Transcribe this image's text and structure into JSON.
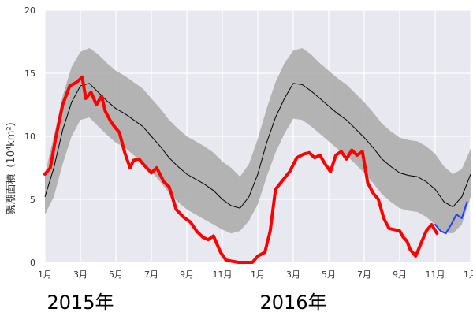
{
  "chart_data": {
    "type": "line",
    "ylabel": "親潮面積（10⁴km²）",
    "ylim": [
      0,
      20
    ],
    "yticks": [
      "0",
      "5",
      "10",
      "15",
      "20"
    ],
    "xlim": [
      0,
      24
    ],
    "xticks": [
      {
        "x": 0,
        "label": "1月"
      },
      {
        "x": 2,
        "label": "3月"
      },
      {
        "x": 4,
        "label": "5月"
      },
      {
        "x": 6,
        "label": "7月"
      },
      {
        "x": 8,
        "label": "9月"
      },
      {
        "x": 10,
        "label": "11月"
      },
      {
        "x": 12,
        "label": "1月"
      },
      {
        "x": 14,
        "label": "3月"
      },
      {
        "x": 16,
        "label": "5月"
      },
      {
        "x": 18,
        "label": "7月"
      },
      {
        "x": 20,
        "label": "9月"
      },
      {
        "x": 22,
        "label": "11月"
      },
      {
        "x": 24,
        "label": "1月"
      }
    ],
    "year_labels": [
      {
        "x": 2,
        "label": "2015年"
      },
      {
        "x": 14,
        "label": "2016年"
      }
    ],
    "grid": true,
    "colors": {
      "background": "#e8e8f0",
      "band": "#a9a9a9",
      "climatology": "#000000",
      "observed": "#ff0000",
      "latest": "#1f3fff"
    },
    "climatology": {
      "x": [
        0,
        0.5,
        1,
        1.5,
        2,
        2.5,
        3,
        3.5,
        4,
        4.5,
        5,
        5.5,
        6,
        6.5,
        7,
        7.5,
        8,
        8.5,
        9,
        9.5,
        10,
        10.5,
        11,
        11.5,
        12,
        12.5,
        13,
        13.5,
        14,
        14.5,
        15,
        15.5,
        16,
        16.5,
        17,
        17.5,
        18,
        18.5,
        19,
        19.5,
        20,
        20.5,
        21,
        21.5,
        22,
        22.5,
        23,
        23.5,
        24
      ],
      "mean": [
        5.2,
        7.5,
        10.5,
        12.7,
        14.0,
        14.2,
        13.5,
        12.8,
        12.2,
        11.8,
        11.3,
        10.8,
        10.0,
        9.2,
        8.3,
        7.6,
        7.0,
        6.6,
        6.2,
        5.7,
        5.0,
        4.5,
        4.3,
        5.2,
        7.0,
        9.5,
        11.5,
        13.0,
        14.2,
        14.1,
        13.6,
        13.0,
        12.4,
        11.8,
        11.3,
        10.6,
        9.9,
        9.1,
        8.2,
        7.6,
        7.1,
        6.9,
        6.8,
        6.4,
        5.8,
        4.8,
        4.4,
        5.2,
        7.0
      ],
      "upper": [
        7.0,
        10.0,
        13.2,
        15.5,
        16.7,
        17.0,
        16.5,
        15.8,
        15.2,
        14.8,
        14.3,
        13.8,
        13.0,
        12.2,
        11.3,
        10.6,
        10.0,
        9.6,
        9.2,
        8.7,
        8.0,
        7.5,
        6.8,
        7.8,
        9.8,
        12.2,
        14.3,
        15.8,
        16.8,
        17.0,
        16.5,
        15.8,
        15.2,
        14.6,
        14.1,
        13.4,
        12.7,
        11.9,
        11.0,
        10.4,
        9.9,
        9.7,
        9.6,
        9.2,
        8.6,
        7.6,
        7.0,
        7.4,
        9.0
      ],
      "lower": [
        3.8,
        5.2,
        7.8,
        10.0,
        11.3,
        11.5,
        10.8,
        10.1,
        9.5,
        9.1,
        8.5,
        8.0,
        7.2,
        6.4,
        5.5,
        4.8,
        4.2,
        3.8,
        3.4,
        3.0,
        2.6,
        2.3,
        2.5,
        3.3,
        4.6,
        6.8,
        8.7,
        10.2,
        11.4,
        11.3,
        10.8,
        10.2,
        9.6,
        9.0,
        8.5,
        7.8,
        7.1,
        6.3,
        5.4,
        4.8,
        4.3,
        4.1,
        4.0,
        3.6,
        3.0,
        2.4,
        2.3,
        3.0,
        5.2
      ]
    },
    "series": [
      {
        "x": [
          0,
          0.3,
          0.6,
          1.0,
          1.4,
          1.8,
          2.1,
          2.3,
          2.6,
          2.9,
          3.2,
          3.4,
          3.7,
          3.9,
          4.2,
          4.5,
          4.8,
          5.0,
          5.3,
          5.6,
          6.0,
          6.3,
          6.7,
          7.0,
          7.4,
          7.8,
          8.2,
          8.6,
          8.9,
          9.2,
          9.5,
          9.9,
          10.2,
          10.5,
          10.9,
          11.3,
          11.7,
          12.0,
          12.4,
          12.7,
          13.0,
          13.4,
          13.8,
          14.2,
          14.6,
          14.9,
          15.2,
          15.5,
          15.8,
          16.1,
          16.4,
          16.7,
          17.0,
          17.3,
          17.6,
          17.9,
          18.2,
          18.5,
          18.8,
          19.1,
          19.4,
          19.7,
          20.0,
          20.2,
          20.4,
          20.6,
          20.9,
          21.2,
          21.5,
          21.8,
          22.1
        ],
        "values": [
          7.0,
          7.5,
          9.8,
          12.5,
          14.0,
          14.3,
          14.7,
          13.0,
          13.5,
          12.5,
          13.2,
          12.0,
          11.2,
          10.8,
          10.3,
          8.7,
          7.5,
          8.1,
          8.2,
          7.7,
          7.1,
          7.5,
          6.4,
          6.0,
          4.2,
          3.6,
          3.2,
          2.4,
          2.0,
          1.8,
          2.1,
          0.8,
          0.2,
          0.1,
          0.0,
          0.0,
          0.0,
          0.5,
          0.8,
          2.5,
          5.8,
          6.5,
          7.2,
          8.3,
          8.6,
          8.7,
          8.3,
          8.5,
          7.8,
          7.2,
          8.5,
          8.8,
          8.2,
          8.9,
          8.5,
          8.8,
          6.3,
          5.5,
          5.0,
          3.5,
          2.7,
          2.6,
          2.5,
          2.0,
          1.7,
          1.0,
          0.5,
          1.5,
          2.5,
          3.0,
          2.3
        ]
      },
      {
        "x": [
          22.0,
          22.3,
          22.6,
          22.9,
          23.2,
          23.5,
          23.8
        ],
        "values": [
          3.0,
          2.5,
          2.3,
          3.0,
          3.8,
          3.5,
          4.8
        ]
      }
    ]
  }
}
